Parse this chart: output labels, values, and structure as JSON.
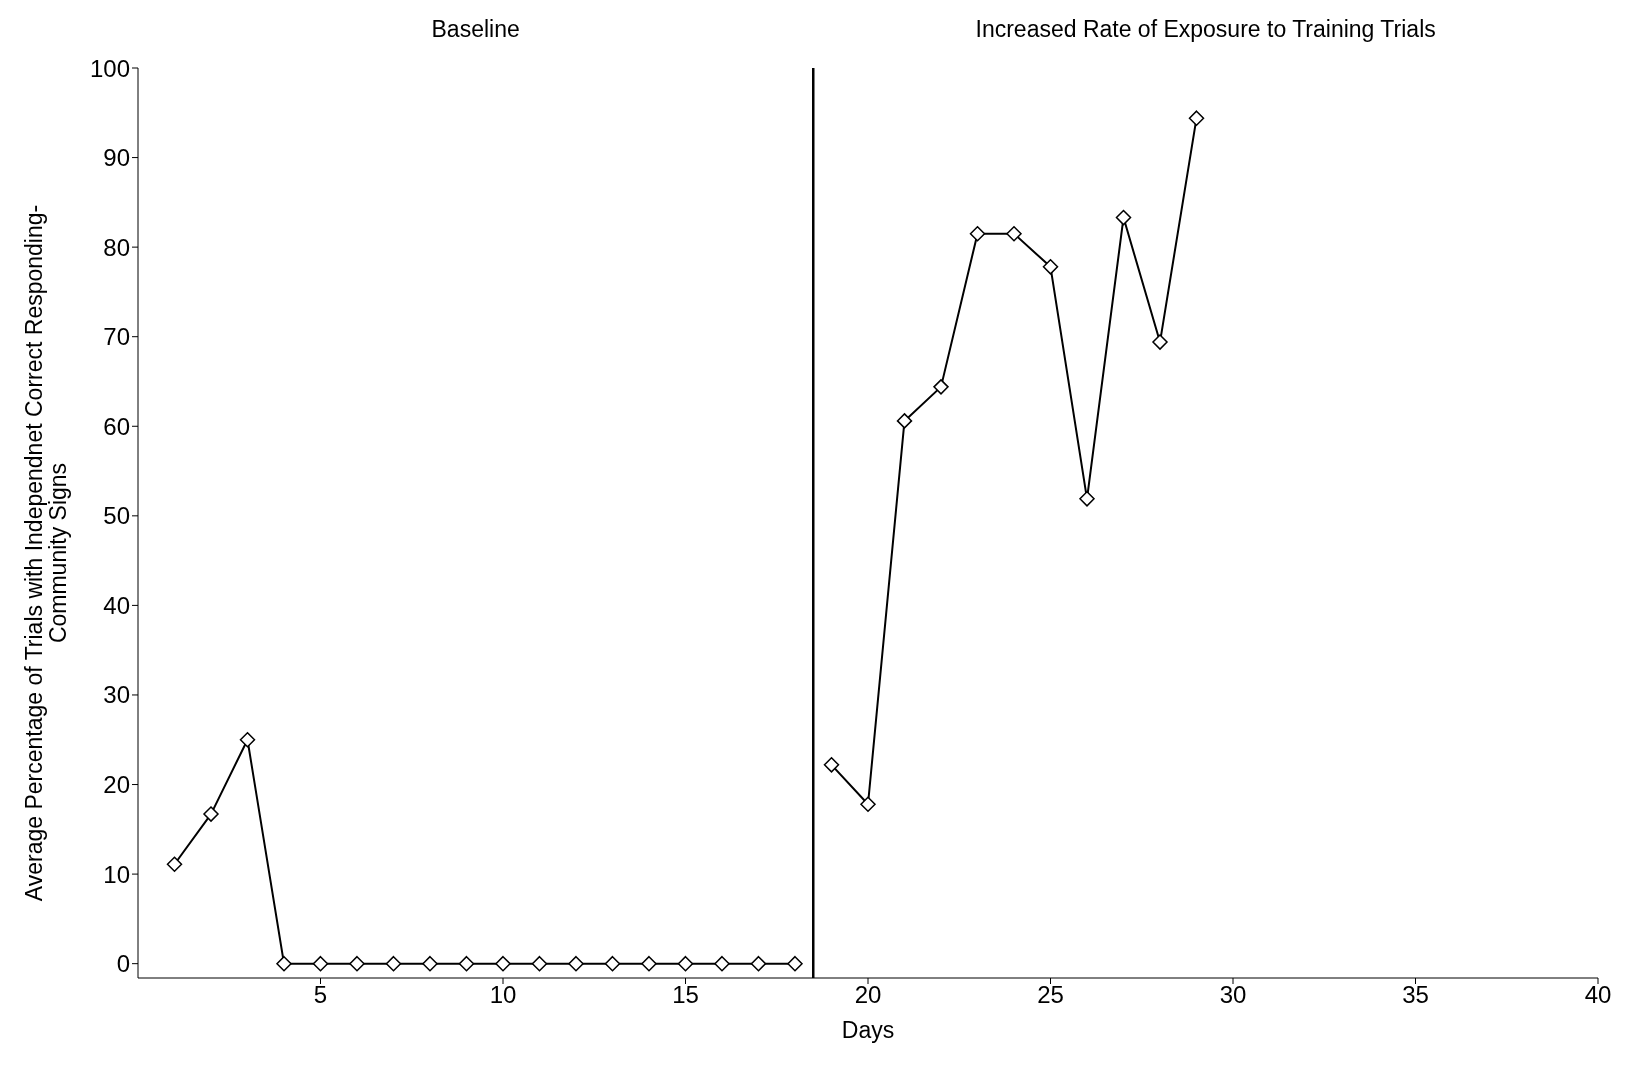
{
  "chart_data": {
    "type": "line",
    "xlabel": "Days",
    "ylabel": "Average Percentage of Trials with Independnet Correct Responding-Community Signs",
    "annotations": [
      "Baseline",
      "Increased Rate of Exposure to Training Trials"
    ],
    "series": [
      {
        "color": "#000000",
        "x": [
          1,
          2,
          3,
          4,
          5,
          6,
          7,
          8,
          9,
          10,
          11,
          12,
          13,
          14,
          15,
          16,
          17,
          18
        ],
        "values": [
          11.1,
          16.7,
          25,
          0,
          0,
          0,
          0,
          0,
          0,
          0,
          0,
          0,
          0,
          0,
          0,
          0,
          0,
          0
        ]
      },
      {
        "color": "#000000",
        "x": [
          19,
          20,
          21,
          22,
          23,
          24,
          25,
          26,
          27,
          28,
          29
        ],
        "values": [
          22.2,
          17.8,
          60.6,
          64.4,
          81.5,
          81.5,
          77.8,
          51.9,
          83.3,
          69.4,
          94.4
        ]
      }
    ],
    "ref_lines": [
      {
        "axis": "x",
        "value": 18.5,
        "color": "#000000",
        "line_style": "solid"
      }
    ],
    "xlim": [
      0,
      40
    ],
    "xticks": [
      5,
      10,
      15,
      20,
      25,
      30,
      35,
      40
    ],
    "ylim": [
      -1.6,
      100
    ],
    "yticks": [
      0,
      10,
      20,
      30,
      40,
      50,
      60,
      70,
      80,
      90,
      100
    ],
    "grid": false,
    "legend": false,
    "marker": "diamond",
    "line_style": "solid"
  }
}
